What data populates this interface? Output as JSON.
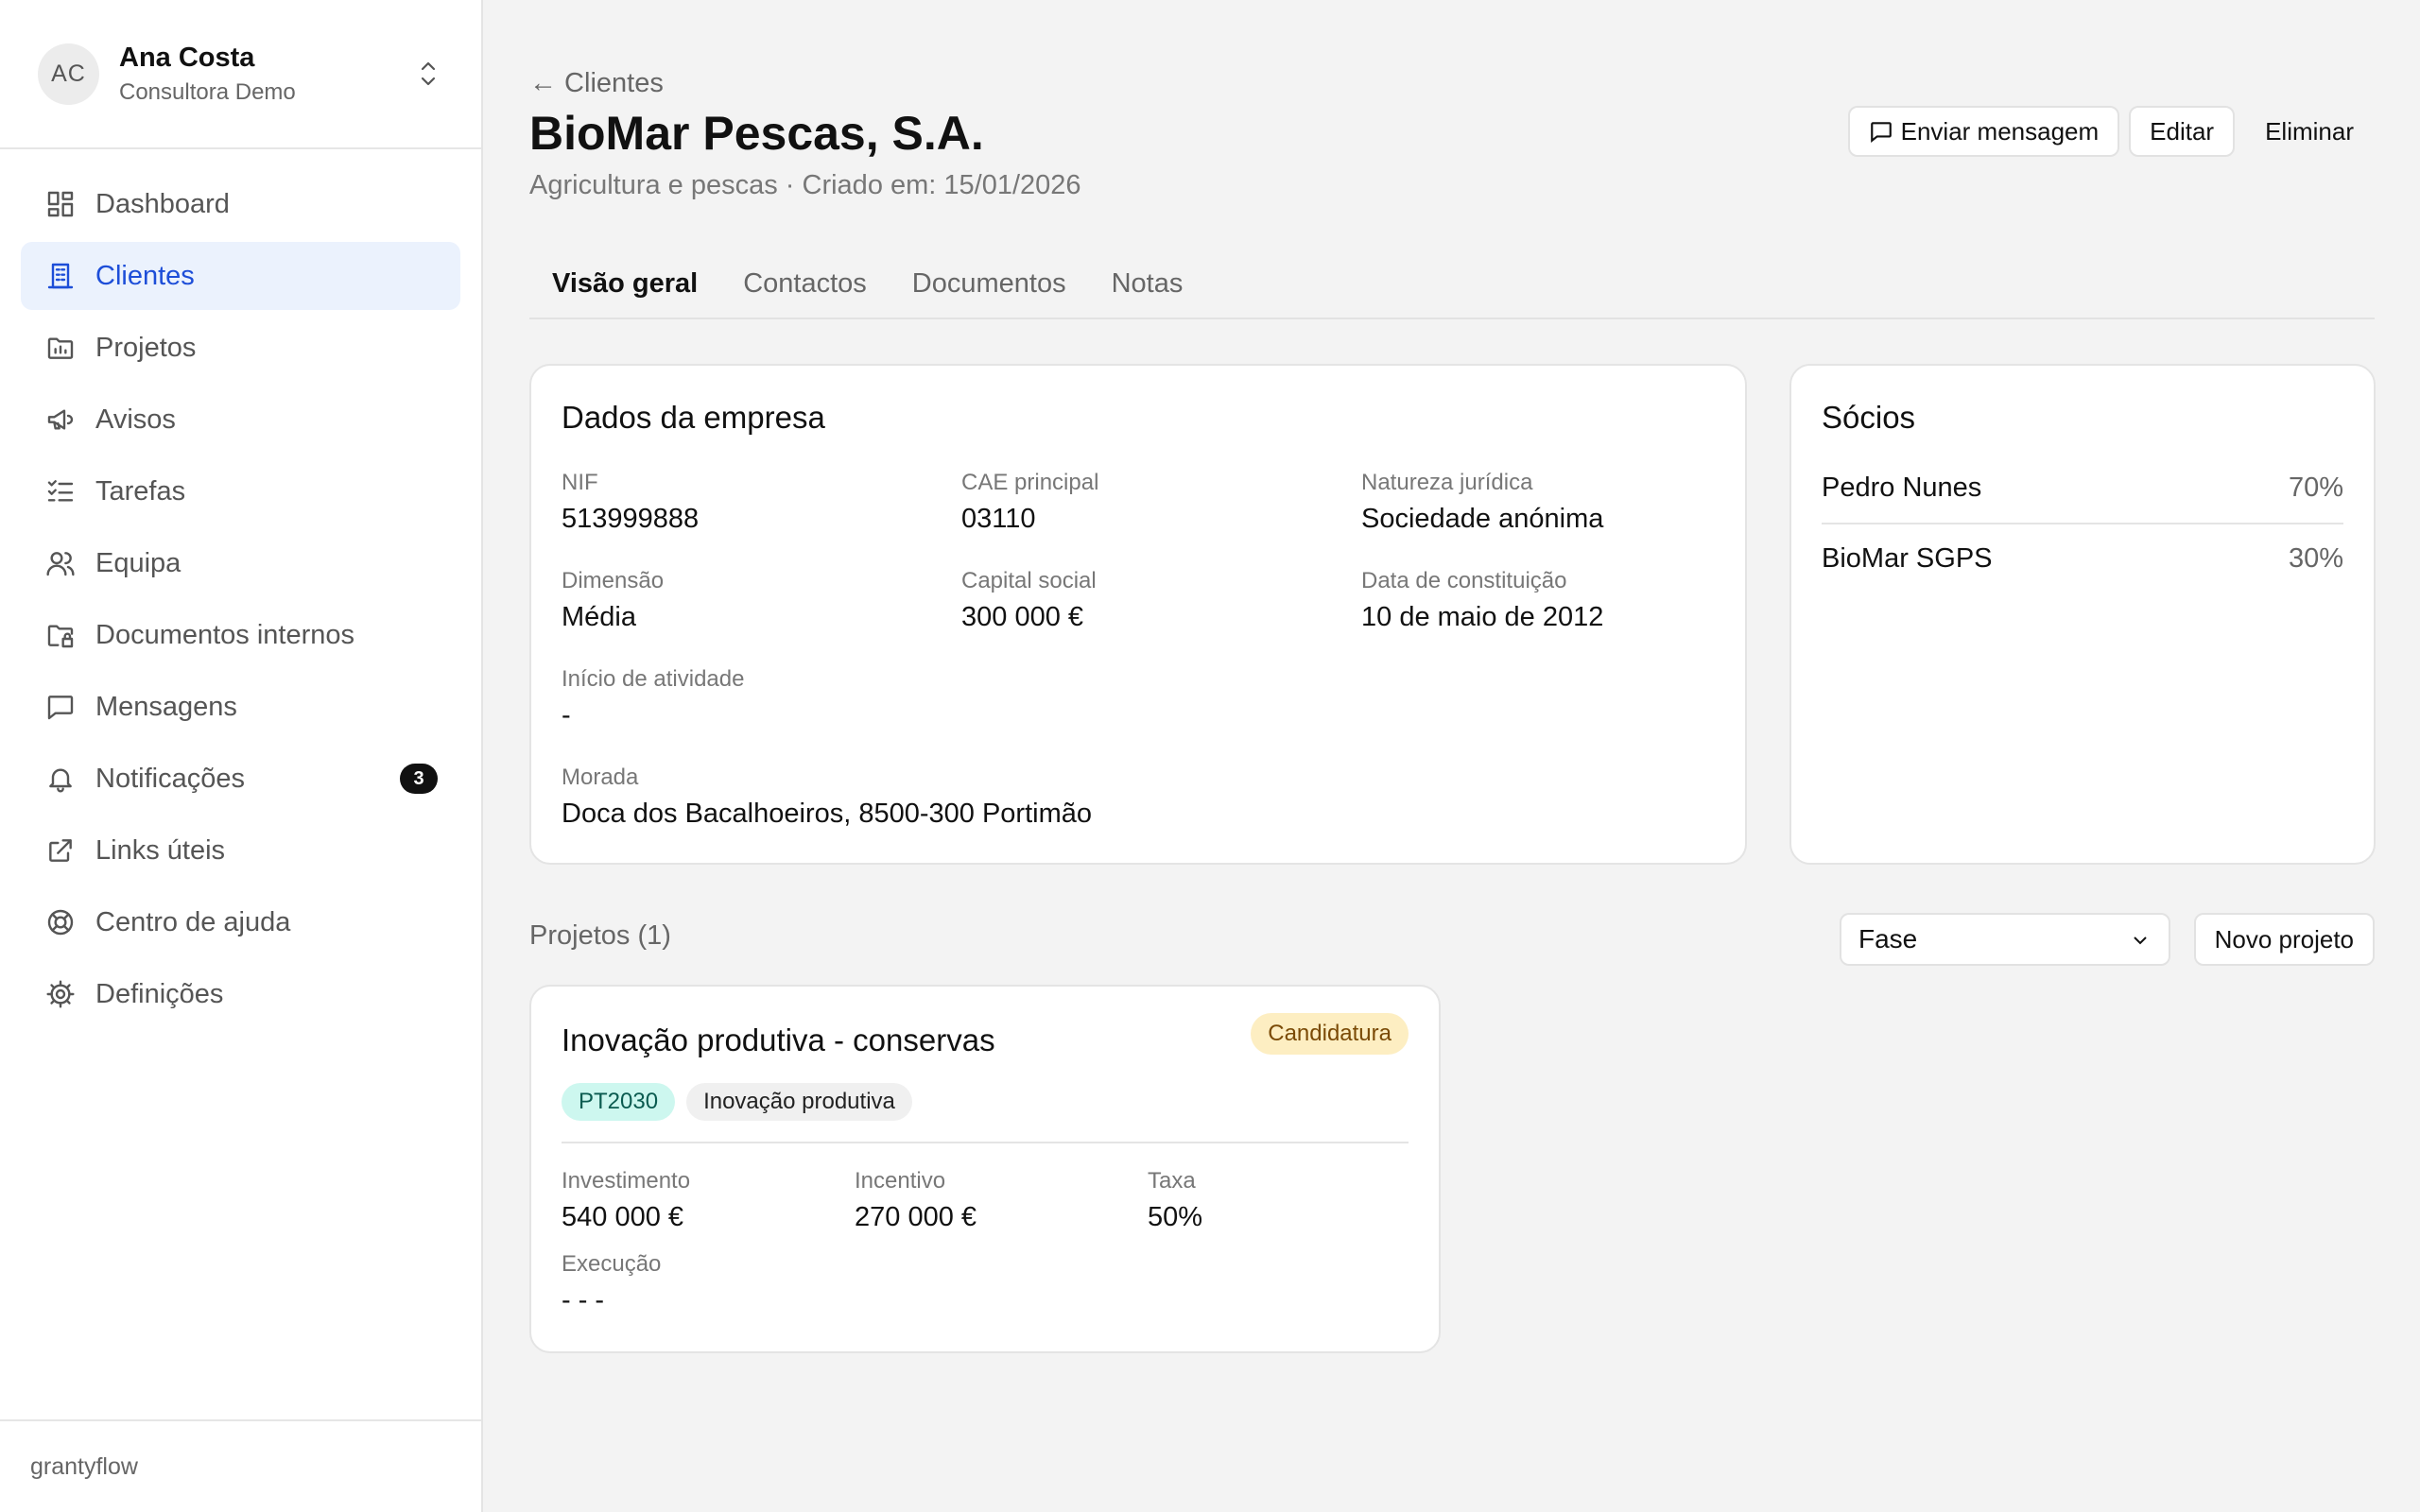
{
  "account": {
    "initials": "AC",
    "name": "Ana Costa",
    "role": "Consultora Demo"
  },
  "nav": [
    {
      "label": "Dashboard",
      "icon": "dashboard-icon"
    },
    {
      "label": "Clientes",
      "icon": "building-icon",
      "active": true
    },
    {
      "label": "Projetos",
      "icon": "folder-chart-icon"
    },
    {
      "label": "Avisos",
      "icon": "megaphone-icon"
    },
    {
      "label": "Tarefas",
      "icon": "list-check-icon"
    },
    {
      "label": "Equipa",
      "icon": "users-icon"
    },
    {
      "label": "Documentos internos",
      "icon": "folder-lock-icon"
    },
    {
      "label": "Mensagens",
      "icon": "message-icon"
    },
    {
      "label": "Notificações",
      "icon": "bell-icon",
      "badge": "3"
    },
    {
      "label": "Links úteis",
      "icon": "external-link-icon"
    },
    {
      "label": "Centro de ajuda",
      "icon": "life-buoy-icon"
    },
    {
      "label": "Definições",
      "icon": "gear-icon"
    }
  ],
  "footer": {
    "brand": "grantyflow"
  },
  "header": {
    "breadcrumb": "← Clientes",
    "title": "BioMar Pescas, S.A.",
    "subtitle": "Agricultura e pescas · Criado em: 15/01/2026",
    "actions": {
      "message": "Enviar mensagem",
      "edit": "Editar",
      "delete": "Eliminar"
    }
  },
  "tabs": [
    "Visão geral",
    "Contactos",
    "Documentos",
    "Notas"
  ],
  "company": {
    "title": "Dados da empresa",
    "fields": {
      "nif": {
        "label": "NIF",
        "value": "513999888"
      },
      "cae": {
        "label": "CAE principal",
        "value": "03110"
      },
      "nature": {
        "label": "Natureza jurídica",
        "value": "Sociedade anónima"
      },
      "size": {
        "label": "Dimensão",
        "value": "Média"
      },
      "capital": {
        "label": "Capital social",
        "value": "300 000 €"
      },
      "founded": {
        "label": "Data de constituição",
        "value": "10 de maio de 2012"
      },
      "start": {
        "label": "Início de atividade",
        "value": "-"
      },
      "address": {
        "label": "Morada",
        "value": "Doca dos Bacalhoeiros, 8500-300 Portimão"
      }
    }
  },
  "partners": {
    "title": "Sócios",
    "rows": [
      {
        "name": "Pedro Nunes",
        "share": "70%"
      },
      {
        "name": "BioMar SGPS",
        "share": "30%"
      }
    ]
  },
  "projects": {
    "title": "Projetos (1)",
    "filter": "Fase",
    "new_label": "Novo projeto",
    "items": [
      {
        "title": "Inovação produtiva - conservas",
        "phase": "Candidatura",
        "program": "PT2030",
        "kind": "Inovação produtiva",
        "investment": {
          "label": "Investimento",
          "value": "540 000 €"
        },
        "incentive": {
          "label": "Incentivo",
          "value": "270 000 €"
        },
        "rate": {
          "label": "Taxa",
          "value": "50%"
        },
        "execution": {
          "label": "Execução",
          "value": "- - -"
        }
      }
    ]
  }
}
